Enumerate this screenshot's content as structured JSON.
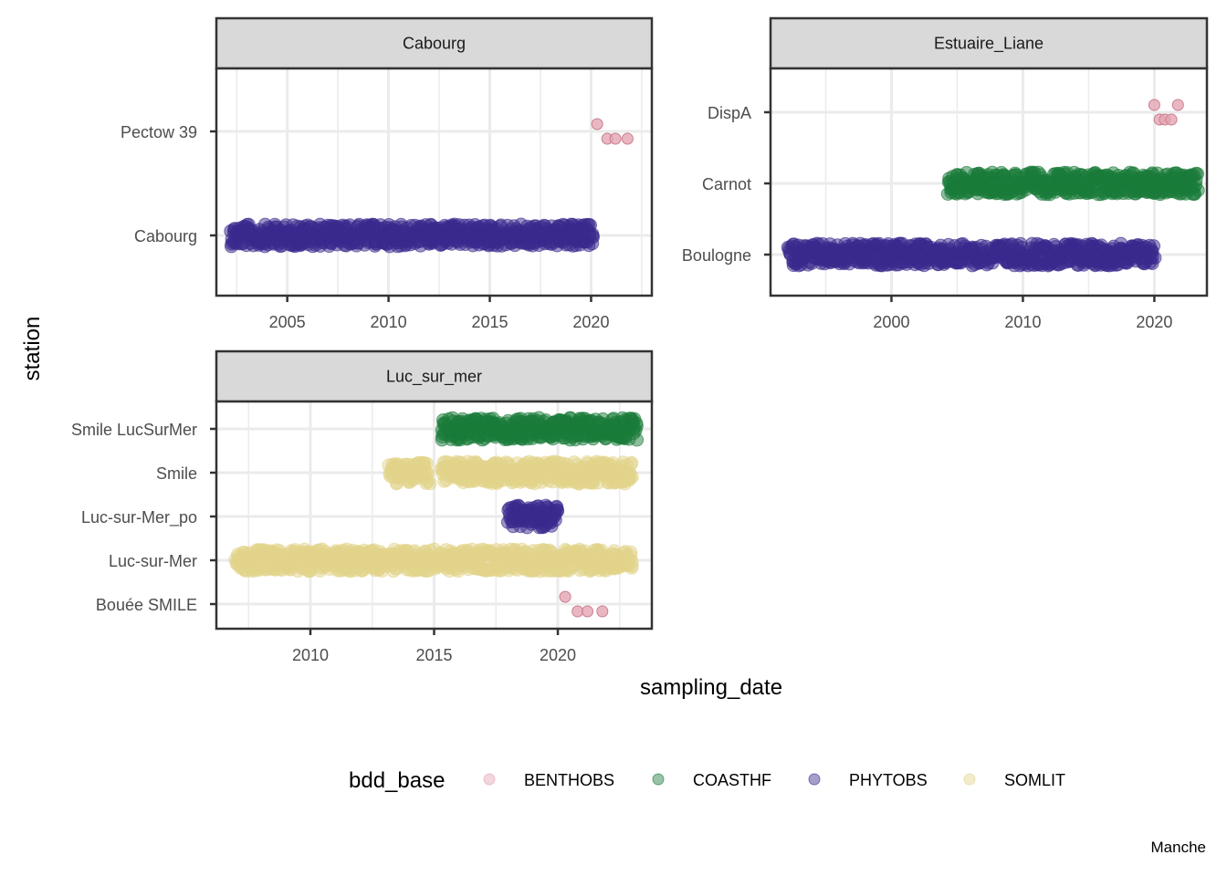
{
  "chart_data": {
    "type": "scatter",
    "xlabel": "sampling_date",
    "ylabel": "station",
    "caption": "Manche",
    "legend": {
      "title": "bdd_base",
      "position": "bottom",
      "entries": [
        {
          "name": "BENTHOBS",
          "color": "#e3a5b3"
        },
        {
          "name": "COASTHF",
          "color": "#1a7b3a"
        },
        {
          "name": "PHYTOBS",
          "color": "#3a2a8e"
        },
        {
          "name": "SOMLIT",
          "color": "#e2d48a"
        }
      ]
    },
    "grid": true,
    "panels": [
      {
        "title": "Cabourg",
        "xlim": [
          2001.5,
          2023.0
        ],
        "xticks": [
          2005,
          2010,
          2015,
          2020
        ],
        "stations": [
          "Cabourg",
          "Pectow 39"
        ],
        "series": [
          {
            "name": "PHYTOBS",
            "station": "Cabourg",
            "range": [
              2002.2,
              2020.1
            ]
          },
          {
            "name": "BENTHOBS",
            "station": "Pectow 39",
            "points": [
              2020.3,
              2020.8,
              2021.2,
              2021.8
            ]
          }
        ]
      },
      {
        "title": "Estuaire_Liane",
        "xlim": [
          1990.8,
          2024.0
        ],
        "xticks": [
          2000,
          2010,
          2020
        ],
        "stations": [
          "Boulogne",
          "Carnot",
          "DispA"
        ],
        "series": [
          {
            "name": "PHYTOBS",
            "station": "Boulogne",
            "range": [
              1992.2,
              2020.0
            ]
          },
          {
            "name": "COASTHF",
            "station": "Carnot",
            "range": [
              2004.3,
              2023.3
            ]
          },
          {
            "name": "BENTHOBS",
            "station": "DispA",
            "points": [
              2020.0,
              2020.4,
              2020.8,
              2021.3,
              2021.8
            ]
          }
        ]
      },
      {
        "title": "Luc_sur_mer",
        "xlim": [
          2006.2,
          2023.8
        ],
        "xticks": [
          2010,
          2015,
          2020
        ],
        "stations": [
          "Bouée SMILE",
          "Luc-sur-Mer",
          "Luc-sur-Mer_po",
          "Smile",
          "Smile LucSurMer"
        ],
        "series": [
          {
            "name": "COASTHF",
            "station": "Smile LucSurMer",
            "range": [
              2015.3,
              2023.2
            ]
          },
          {
            "name": "SOMLIT",
            "station": "Smile",
            "range": [
              2013.2,
              2014.8
            ]
          },
          {
            "name": "SOMLIT",
            "station": "Smile",
            "range": [
              2015.3,
              2023.0
            ]
          },
          {
            "name": "PHYTOBS",
            "station": "Luc-sur-Mer_po",
            "range": [
              2018.0,
              2020.0
            ]
          },
          {
            "name": "SOMLIT",
            "station": "Luc-sur-Mer",
            "range": [
              2007.0,
              2023.0
            ]
          },
          {
            "name": "BENTHOBS",
            "station": "Bouée SMILE",
            "points": [
              2020.3,
              2020.8,
              2021.2,
              2021.8
            ]
          }
        ]
      }
    ]
  }
}
